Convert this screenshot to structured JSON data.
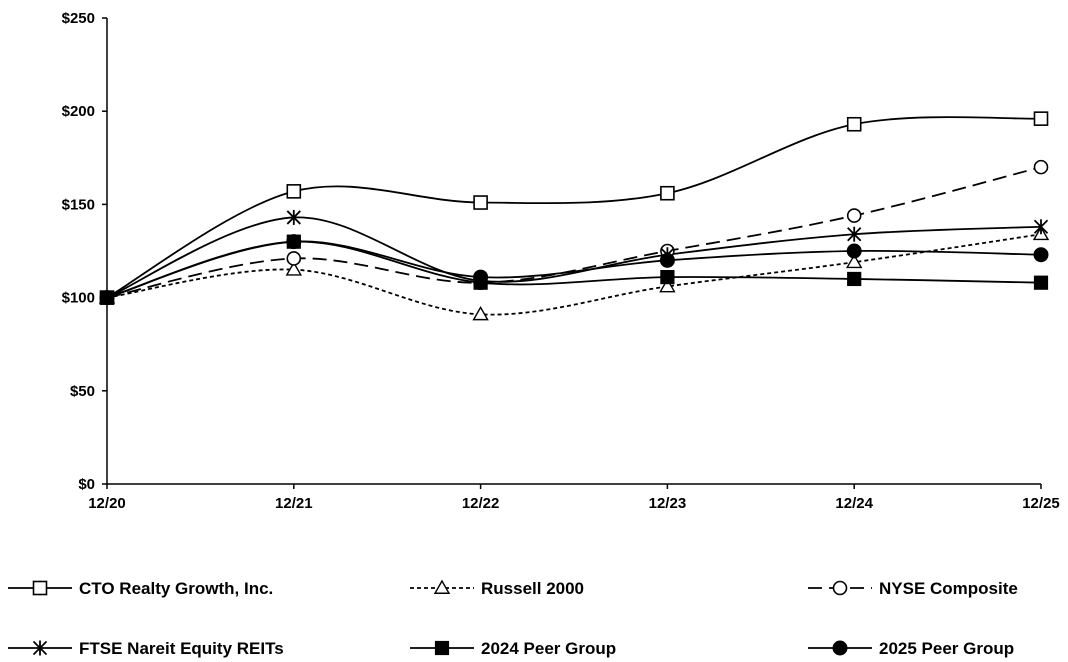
{
  "chart_data": {
    "type": "line",
    "title": "",
    "xlabel": "",
    "ylabel": "",
    "categories": [
      "12/20",
      "12/21",
      "12/22",
      "12/23",
      "12/24",
      "12/25"
    ],
    "ylim": [
      0,
      250
    ],
    "y_ticks": [
      0,
      50,
      100,
      150,
      200,
      250
    ],
    "y_tick_labels": [
      "$0",
      "$50",
      "$100",
      "$150",
      "$200",
      "$250"
    ],
    "grid": false,
    "legend_position": "bottom",
    "series": [
      {
        "name": "CTO Realty Growth, Inc.",
        "values": [
          100,
          157,
          151,
          156,
          193,
          196
        ],
        "marker": "square-open",
        "line": "solid",
        "color": "#000000"
      },
      {
        "name": "Russell 2000",
        "values": [
          100,
          115,
          91,
          106,
          119,
          134
        ],
        "marker": "triangle-open",
        "line": "dotted",
        "color": "#000000"
      },
      {
        "name": "NYSE Composite",
        "values": [
          100,
          121,
          108,
          125,
          144,
          170
        ],
        "marker": "circle-open",
        "line": "dashed",
        "color": "#000000"
      },
      {
        "name": "FTSE Nareit Equity REITs",
        "values": [
          100,
          143,
          109,
          123,
          134,
          138
        ],
        "marker": "asterisk",
        "line": "solid",
        "color": "#000000"
      },
      {
        "name": "2024 Peer Group",
        "values": [
          100,
          130,
          108,
          111,
          110,
          108
        ],
        "marker": "square-filled",
        "line": "solid",
        "color": "#000000"
      },
      {
        "name": "2025 Peer Group",
        "values": [
          100,
          130,
          111,
          120,
          125,
          123
        ],
        "marker": "circle-filled",
        "line": "solid",
        "color": "#000000"
      }
    ]
  }
}
